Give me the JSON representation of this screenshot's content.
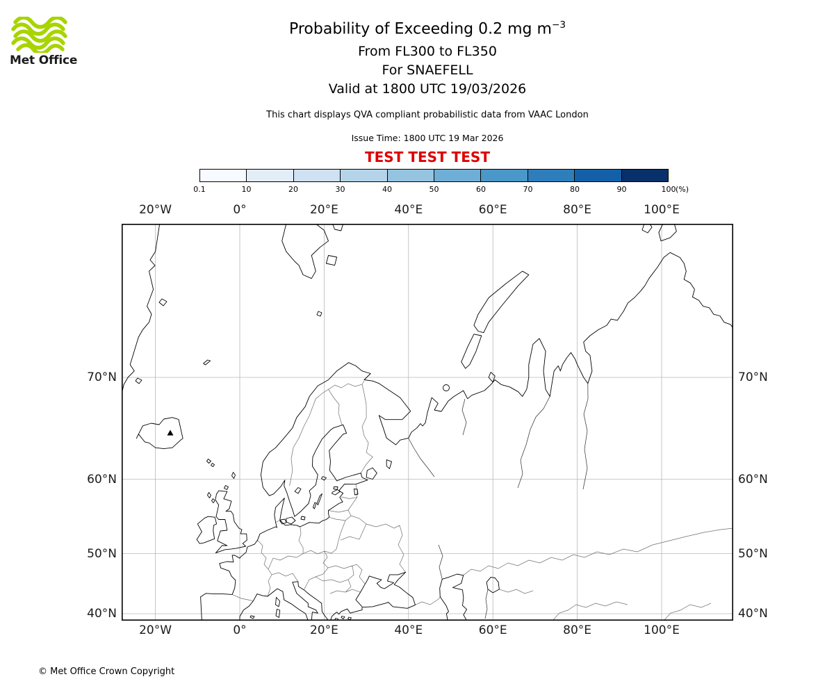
{
  "logo": {
    "brand": "Met Office",
    "icon": "met-office-waves-icon",
    "wave_color": "#a8d400"
  },
  "header": {
    "title": "Probability of Exceeding 0.2 mg m",
    "title_exponent": "−3",
    "flight_levels": "From FL300 to FL350",
    "volcano": "For SNAEFELL",
    "valid_time": "Valid at 1800 UTC 19/03/2026",
    "description": "This chart displays QVA compliant probabilistic data from VAAC London",
    "issue_time": "Issue Time: 1800 UTC 19 Mar 2026",
    "test_banner": "TEST TEST TEST",
    "test_banner_color": "#dd0000"
  },
  "colorbar": {
    "ticks": [
      "0.1",
      "10",
      "20",
      "30",
      "40",
      "50",
      "60",
      "70",
      "80",
      "90",
      "100"
    ],
    "unit": "(%)",
    "colors": [
      "#f7fbff",
      "#e2edf8",
      "#cfe1f2",
      "#b5d4e9",
      "#94c4df",
      "#6faed6",
      "#4a97c9",
      "#2e7ebc",
      "#1460a8",
      "#08306b"
    ]
  },
  "map": {
    "lon_labels": [
      "20°W",
      "0°",
      "20°E",
      "40°E",
      "60°E",
      "80°E",
      "100°E"
    ],
    "lat_labels": [
      "70°N",
      "60°N",
      "50°N",
      "40°N"
    ],
    "volcano_marker": "SNAEFELL"
  },
  "footer": {
    "copyright": "© Met Office Crown Copyright"
  }
}
